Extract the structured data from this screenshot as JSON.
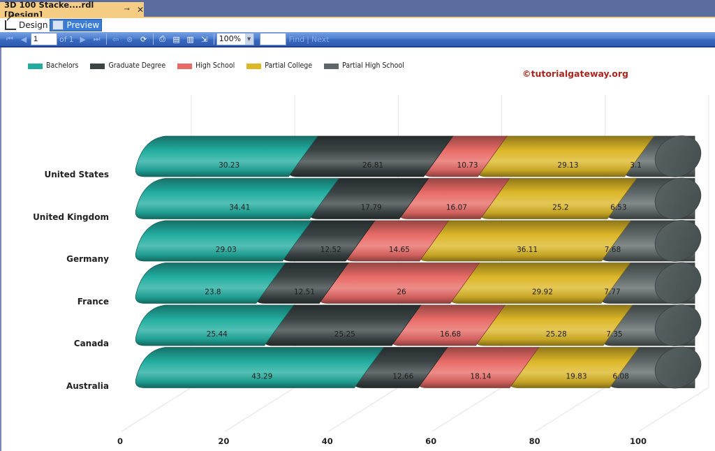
{
  "window": {
    "doc_tab_title": "3D 100 Stacke....rdl [Design]",
    "pin_icon": "pin-icon",
    "close_icon": "close-icon"
  },
  "modes": {
    "design_label": "Design",
    "preview_label": "Preview",
    "active": "Preview"
  },
  "toolbar": {
    "page_current": "1",
    "page_of": "of",
    "page_total": "1",
    "zoom_value": "100%",
    "find_value": "",
    "find_label": "Find",
    "next_label": "Next",
    "separator": "|"
  },
  "watermark": "©tutorialgateway.org",
  "colors": {
    "Bachelors": "#22ada0",
    "Graduate Degree": "#3b4445",
    "High School": "#e86b67",
    "Partial College": "#dcb728",
    "Partial High School": "#5f6868",
    "toolbar_blue": "#3a69c0",
    "tab_gold": "#f5cc84"
  },
  "chart_data": {
    "type": "bar",
    "orientation": "horizontal",
    "stacking": "100%",
    "style": "3D cylinder",
    "title": "",
    "xlabel": "",
    "ylabel": "",
    "xlim": [
      0,
      100
    ],
    "xticks": [
      "0",
      "20",
      "40",
      "60",
      "80",
      "100"
    ],
    "grid": true,
    "legend_position": "top-left",
    "categories": [
      "United States",
      "United Kingdom",
      "Germany",
      "France",
      "Canada",
      "Australia"
    ],
    "series": [
      {
        "name": "Bachelors",
        "values": [
          30.23,
          34.41,
          29.03,
          23.8,
          25.44,
          43.29
        ]
      },
      {
        "name": "Graduate Degree",
        "values": [
          26.81,
          17.79,
          12.52,
          12.51,
          25.25,
          12.66
        ]
      },
      {
        "name": "High School",
        "values": [
          10.73,
          16.07,
          14.65,
          26,
          16.68,
          18.14
        ]
      },
      {
        "name": "Partial College",
        "values": [
          29.13,
          25.2,
          36.11,
          29.92,
          25.28,
          19.83
        ]
      },
      {
        "name": "Partial High School",
        "values": [
          3.1,
          6.53,
          7.68,
          7.77,
          7.35,
          6.08
        ]
      }
    ]
  }
}
